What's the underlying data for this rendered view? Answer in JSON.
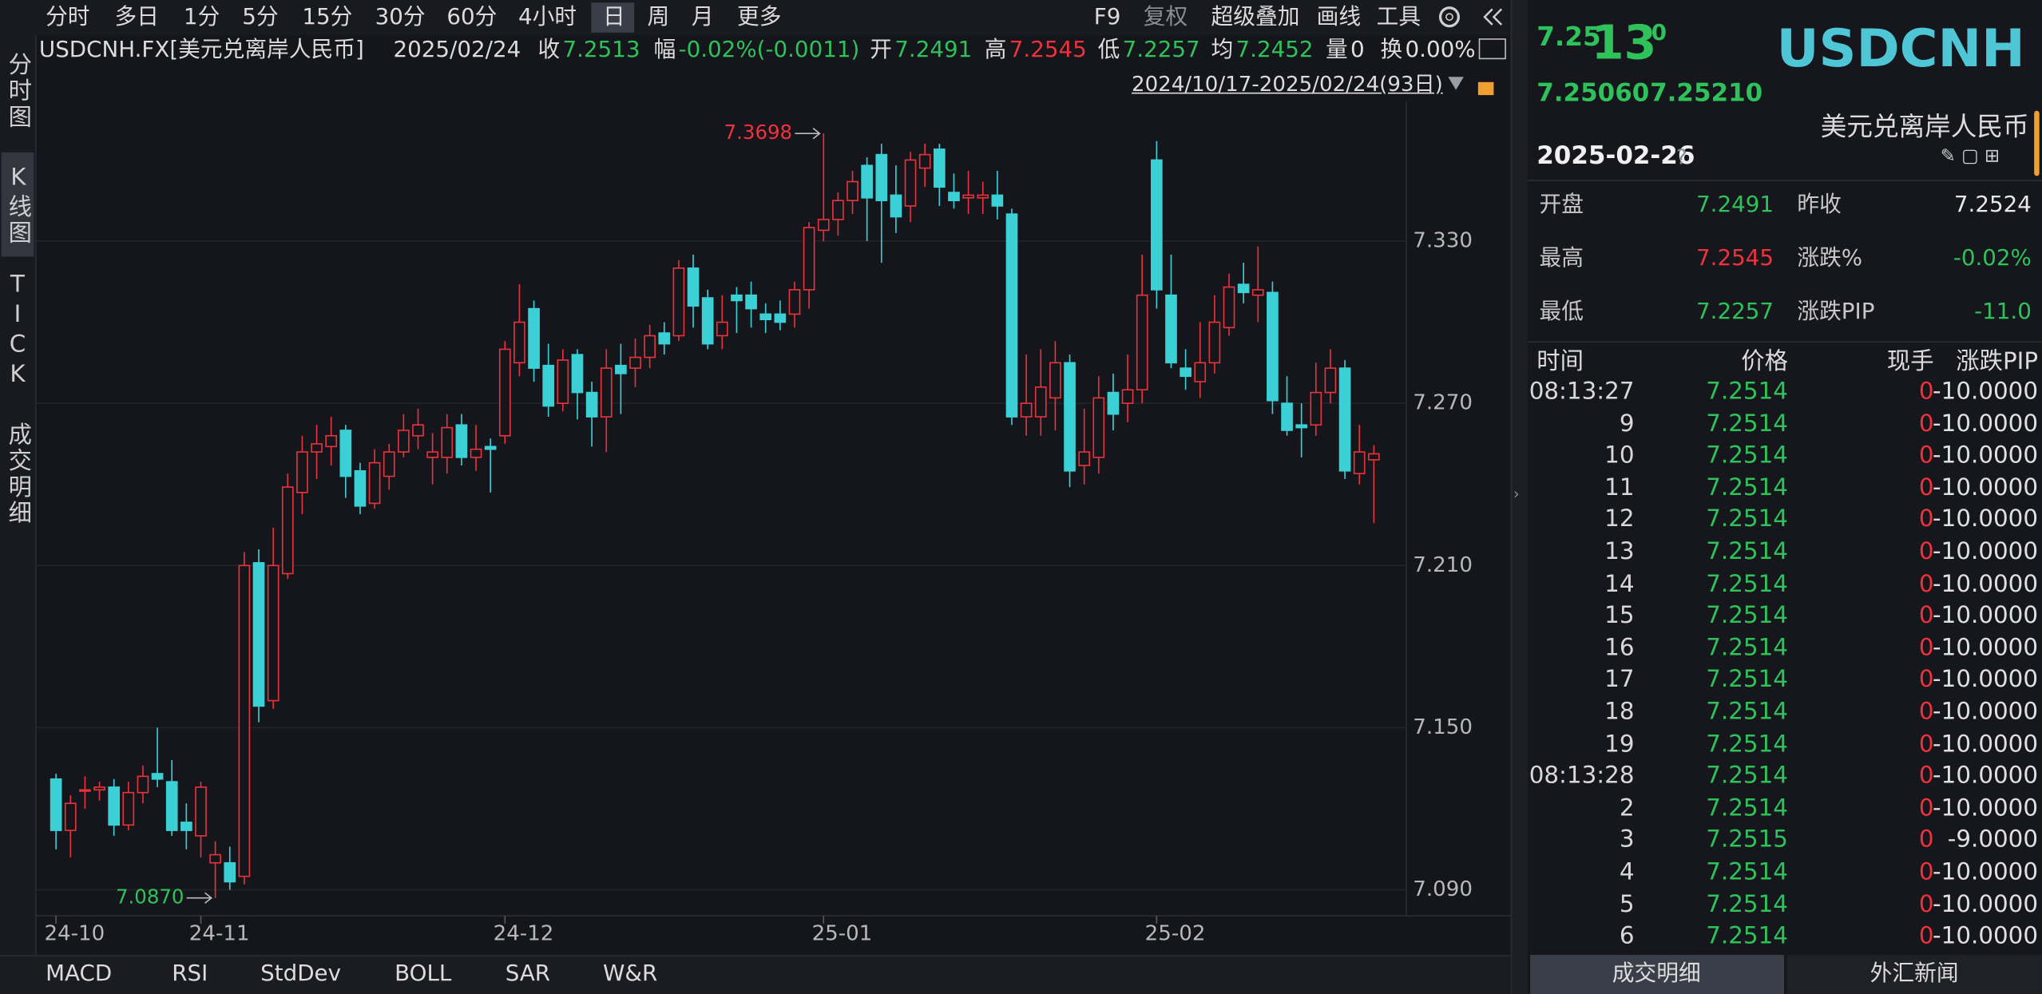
{
  "toolbar": {
    "periods": [
      "分时",
      "多日",
      "1分",
      "5分",
      "15分",
      "30分",
      "60分",
      "4小时",
      "日",
      "周",
      "月",
      "更多"
    ],
    "tools": [
      "F9",
      "复权",
      "超级叠加",
      "画线",
      "工具"
    ]
  },
  "side_tabs": [
    "分时图",
    "K线图",
    "TICK",
    "成交明细"
  ],
  "quote_bar": {
    "symbol": "USDCNH.FX[美元兑离岸人民币]",
    "date": "2025/02/24",
    "fields": [
      {
        "label": "收",
        "value": "7.2513",
        "color": "#2fc25b"
      },
      {
        "label": "幅",
        "value": "-0.02%(-0.0011)",
        "color": "#2fc25b"
      },
      {
        "label": "开",
        "value": "7.2491",
        "color": "#2fc25b"
      },
      {
        "label": "高",
        "value": "7.2545",
        "color": "#f0323c"
      },
      {
        "label": "低",
        "value": "7.2257",
        "color": "#2fc25b"
      },
      {
        "label": "均",
        "value": "7.2452",
        "color": "#2fc25b"
      },
      {
        "label": "量",
        "value": "0",
        "color": "#e0e0e0"
      },
      {
        "label": "换",
        "value": "0.00%",
        "color": "#e0e0e0"
      }
    ],
    "range": "2024/10/17-2025/02/24(93日)"
  },
  "chart_data": {
    "type": "candlestick",
    "up_color": "#e8323c",
    "down_color": "#3ad0d6",
    "ylim": [
      7.0804,
      7.3816
    ],
    "yticks": [
      {
        "value": 7.33,
        "label": "7.330"
      },
      {
        "value": 7.27,
        "label": "7.270"
      },
      {
        "value": 7.21,
        "label": "7.210"
      },
      {
        "value": 7.15,
        "label": "7.150"
      },
      {
        "value": 7.09,
        "label": "7.090"
      }
    ],
    "xlim": [
      -1.35,
      93.25
    ],
    "xticks": [
      {
        "value": 0,
        "label": "24-10"
      },
      {
        "value": 10,
        "label": "24-11"
      },
      {
        "value": 31,
        "label": "24-12"
      },
      {
        "value": 53,
        "label": "25-01"
      },
      {
        "value": 76,
        "label": "25-02"
      }
    ],
    "grid": true,
    "candles": [
      [
        7.131,
        7.133,
        7.105,
        7.112
      ],
      [
        7.112,
        7.125,
        7.102,
        7.122
      ],
      [
        7.127,
        7.132,
        7.12,
        7.127
      ],
      [
        7.127,
        7.13,
        7.123,
        7.128
      ],
      [
        7.128,
        7.131,
        7.11,
        7.114
      ],
      [
        7.114,
        7.13,
        7.112,
        7.126
      ],
      [
        7.126,
        7.136,
        7.122,
        7.132
      ],
      [
        7.133,
        7.15,
        7.128,
        7.131
      ],
      [
        7.13,
        7.138,
        7.11,
        7.112
      ],
      [
        7.115,
        7.122,
        7.105,
        7.112
      ],
      [
        7.11,
        7.13,
        7.102,
        7.128
      ],
      [
        7.1,
        7.108,
        7.087,
        7.103
      ],
      [
        7.1,
        7.106,
        7.09,
        7.093
      ],
      [
        7.095,
        7.215,
        7.092,
        7.21
      ],
      [
        7.211,
        7.216,
        7.152,
        7.158
      ],
      [
        7.16,
        7.224,
        7.157,
        7.21
      ],
      [
        7.207,
        7.244,
        7.205,
        7.239
      ],
      [
        7.237,
        7.258,
        7.229,
        7.252
      ],
      [
        7.252,
        7.262,
        7.242,
        7.255
      ],
      [
        7.254,
        7.265,
        7.247,
        7.258
      ],
      [
        7.26,
        7.262,
        7.235,
        7.243
      ],
      [
        7.245,
        7.248,
        7.229,
        7.232
      ],
      [
        7.233,
        7.253,
        7.231,
        7.248
      ],
      [
        7.243,
        7.255,
        7.238,
        7.252
      ],
      [
        7.252,
        7.266,
        7.25,
        7.26
      ],
      [
        7.258,
        7.268,
        7.253,
        7.262
      ],
      [
        7.25,
        7.259,
        7.24,
        7.252
      ],
      [
        7.25,
        7.266,
        7.244,
        7.261
      ],
      [
        7.262,
        7.266,
        7.247,
        7.25
      ],
      [
        7.25,
        7.262,
        7.245,
        7.253
      ],
      [
        7.254,
        7.257,
        7.237,
        7.253
      ],
      [
        7.258,
        7.293,
        7.255,
        7.29
      ],
      [
        7.285,
        7.314,
        7.28,
        7.3
      ],
      [
        7.305,
        7.308,
        7.278,
        7.283
      ],
      [
        7.284,
        7.292,
        7.265,
        7.269
      ],
      [
        7.27,
        7.29,
        7.267,
        7.286
      ],
      [
        7.288,
        7.29,
        7.264,
        7.274
      ],
      [
        7.274,
        7.278,
        7.254,
        7.265
      ],
      [
        7.265,
        7.29,
        7.252,
        7.283
      ],
      [
        7.284,
        7.292,
        7.266,
        7.281
      ],
      [
        7.283,
        7.294,
        7.276,
        7.287
      ],
      [
        7.287,
        7.299,
        7.283,
        7.295
      ],
      [
        7.296,
        7.3,
        7.288,
        7.292
      ],
      [
        7.295,
        7.323,
        7.293,
        7.32
      ],
      [
        7.32,
        7.325,
        7.298,
        7.306
      ],
      [
        7.309,
        7.312,
        7.29,
        7.292
      ],
      [
        7.295,
        7.31,
        7.29,
        7.3
      ],
      [
        7.31,
        7.313,
        7.296,
        7.308
      ],
      [
        7.31,
        7.315,
        7.298,
        7.305
      ],
      [
        7.303,
        7.307,
        7.296,
        7.301
      ],
      [
        7.303,
        7.308,
        7.297,
        7.3
      ],
      [
        7.303,
        7.315,
        7.298,
        7.312
      ],
      [
        7.312,
        7.337,
        7.305,
        7.335
      ],
      [
        7.334,
        7.3698,
        7.33,
        7.338
      ],
      [
        7.338,
        7.348,
        7.332,
        7.345
      ],
      [
        7.345,
        7.356,
        7.34,
        7.352
      ],
      [
        7.358,
        7.361,
        7.33,
        7.346
      ],
      [
        7.362,
        7.366,
        7.322,
        7.345
      ],
      [
        7.347,
        7.358,
        7.333,
        7.339
      ],
      [
        7.343,
        7.363,
        7.337,
        7.36
      ],
      [
        7.357,
        7.366,
        7.35,
        7.362
      ],
      [
        7.364,
        7.366,
        7.343,
        7.35
      ],
      [
        7.348,
        7.355,
        7.342,
        7.345
      ],
      [
        7.346,
        7.356,
        7.34,
        7.347
      ],
      [
        7.346,
        7.352,
        7.34,
        7.347
      ],
      [
        7.347,
        7.356,
        7.338,
        7.343
      ],
      [
        7.34,
        7.342,
        7.262,
        7.265
      ],
      [
        7.265,
        7.288,
        7.258,
        7.27
      ],
      [
        7.265,
        7.29,
        7.258,
        7.276
      ],
      [
        7.272,
        7.293,
        7.26,
        7.285
      ],
      [
        7.285,
        7.288,
        7.239,
        7.245
      ],
      [
        7.247,
        7.268,
        7.24,
        7.252
      ],
      [
        7.25,
        7.28,
        7.244,
        7.272
      ],
      [
        7.274,
        7.281,
        7.26,
        7.266
      ],
      [
        7.27,
        7.288,
        7.263,
        7.275
      ],
      [
        7.275,
        7.325,
        7.27,
        7.31
      ],
      [
        7.36,
        7.367,
        7.305,
        7.312
      ],
      [
        7.31,
        7.325,
        7.283,
        7.285
      ],
      [
        7.283,
        7.29,
        7.275,
        7.28
      ],
      [
        7.278,
        7.3,
        7.272,
        7.285
      ],
      [
        7.285,
        7.31,
        7.281,
        7.3
      ],
      [
        7.298,
        7.318,
        7.295,
        7.313
      ],
      [
        7.314,
        7.322,
        7.307,
        7.311
      ],
      [
        7.31,
        7.328,
        7.3,
        7.312
      ],
      [
        7.311,
        7.315,
        7.266,
        7.271
      ],
      [
        7.27,
        7.28,
        7.258,
        7.26
      ],
      [
        7.262,
        7.27,
        7.25,
        7.261
      ],
      [
        7.262,
        7.285,
        7.258,
        7.274
      ],
      [
        7.274,
        7.29,
        7.27,
        7.283
      ],
      [
        7.283,
        7.286,
        7.242,
        7.245
      ],
      [
        7.244,
        7.262,
        7.24,
        7.252
      ],
      [
        7.2491,
        7.2545,
        7.2257,
        7.2513
      ]
    ],
    "annotations": [
      {
        "x": 53,
        "y": 7.3698,
        "label": "7.3698",
        "color": "#f0323c"
      },
      {
        "x": 11,
        "y": 7.087,
        "label": "7.0870",
        "color": "#2fc25b"
      }
    ]
  },
  "indicator_tabs": [
    "MACD",
    "RSI",
    "StdDev",
    "BOLL",
    "SAR",
    "W&R"
  ],
  "panel": {
    "price_head": "7.25",
    "price_big": "13",
    "price_tail": "0",
    "bid": "7.25060",
    "ask": "7.25210",
    "code": "USDCNH",
    "name": "美元兑离岸人民币",
    "date": "2025-02-26",
    "help": "?",
    "stats": [
      [
        {
          "label": "开盘",
          "value": "7.2491",
          "color": "#2fc25b"
        },
        {
          "label": "昨收",
          "value": "7.2524",
          "color": "#e8e8e8"
        }
      ],
      [
        {
          "label": "最高",
          "value": "7.2545",
          "color": "#f0323c"
        },
        {
          "label": "涨跌%",
          "value": "-0.02%",
          "color": "#2fc25b"
        }
      ],
      [
        {
          "label": "最低",
          "value": "7.2257",
          "color": "#2fc25b"
        },
        {
          "label": "涨跌PIP",
          "value": "-11.0",
          "color": "#2fc25b"
        }
      ]
    ],
    "trade_header": [
      "时间",
      "价格",
      "现手",
      "涨跌PIP"
    ],
    "trades": [
      [
        "08:13:27",
        "7.2514",
        "0",
        "-10.0000"
      ],
      [
        "9",
        "7.2514",
        "0",
        "-10.0000"
      ],
      [
        "10",
        "7.2514",
        "0",
        "-10.0000"
      ],
      [
        "11",
        "7.2514",
        "0",
        "-10.0000"
      ],
      [
        "12",
        "7.2514",
        "0",
        "-10.0000"
      ],
      [
        "13",
        "7.2514",
        "0",
        "-10.0000"
      ],
      [
        "14",
        "7.2514",
        "0",
        "-10.0000"
      ],
      [
        "15",
        "7.2514",
        "0",
        "-10.0000"
      ],
      [
        "16",
        "7.2514",
        "0",
        "-10.0000"
      ],
      [
        "17",
        "7.2514",
        "0",
        "-10.0000"
      ],
      [
        "18",
        "7.2514",
        "0",
        "-10.0000"
      ],
      [
        "19",
        "7.2514",
        "0",
        "-10.0000"
      ],
      [
        "08:13:28",
        "7.2514",
        "0",
        "-10.0000"
      ],
      [
        "2",
        "7.2514",
        "0",
        "-10.0000"
      ],
      [
        "3",
        "7.2515",
        "0",
        "-9.0000"
      ],
      [
        "4",
        "7.2514",
        "0",
        "-10.0000"
      ],
      [
        "5",
        "7.2514",
        "0",
        "-10.0000"
      ],
      [
        "6",
        "7.2514",
        "0",
        "-10.0000"
      ]
    ],
    "bottom_tabs": [
      "成交明细",
      "外汇新闻"
    ]
  }
}
